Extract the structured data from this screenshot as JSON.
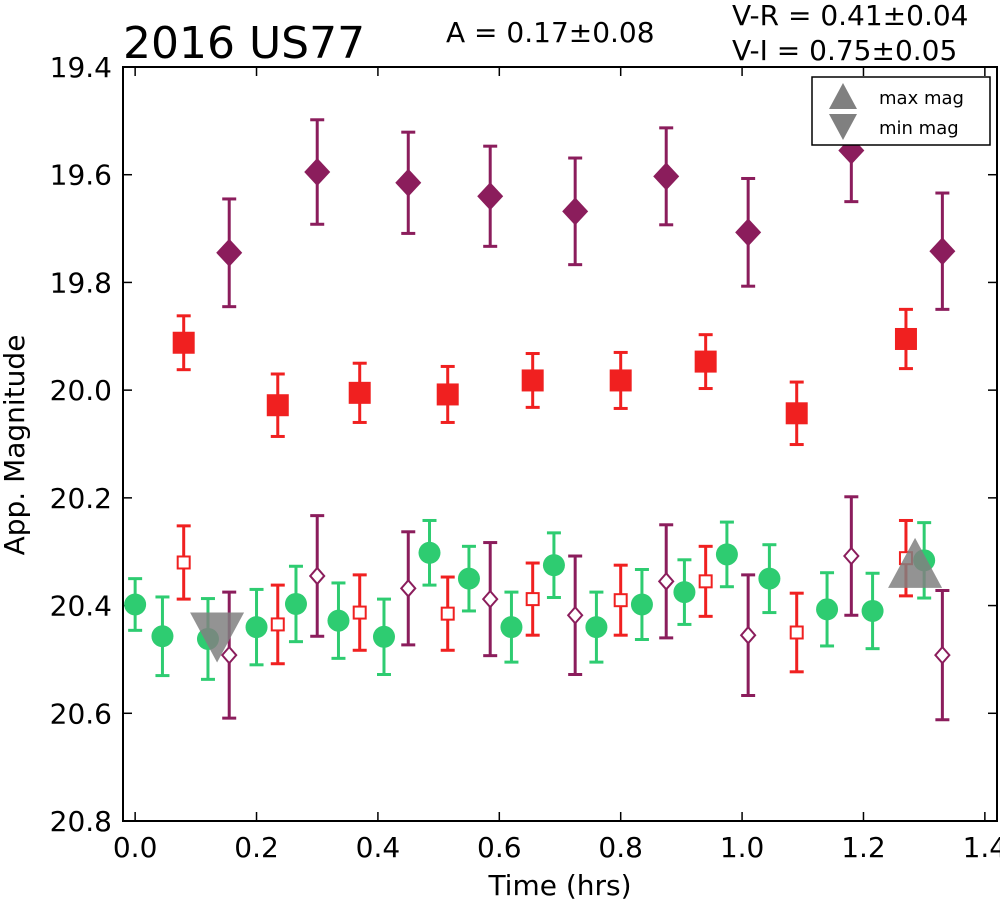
{
  "chart_data": {
    "type": "scatter",
    "title": "2016 US77",
    "annotations": {
      "amplitude": "A  = 0.17±0.08",
      "v_r": "V-R = 0.41±0.04",
      "v_i": "V-I  = 0.75±0.05"
    },
    "xlabel": "Time (hrs)",
    "ylabel": "App. Magnitude",
    "xlim": [
      -0.02,
      1.42
    ],
    "ylim": [
      20.8,
      19.4
    ],
    "y_inverted": true,
    "grid": false,
    "xticks": [
      "0.0",
      "0.2",
      "0.4",
      "0.6",
      "0.8",
      "1.0",
      "1.2",
      "1.4"
    ],
    "yticks": [
      "19.4",
      "19.6",
      "19.8",
      "20.0",
      "20.2",
      "20.4",
      "20.6",
      "20.8"
    ],
    "legend": {
      "placement": "top-right",
      "entries": [
        {
          "label": "max mag",
          "marker": "triangle-up",
          "color": "#808080"
        },
        {
          "label": "min mag",
          "marker": "triangle-down",
          "color": "#808080"
        }
      ]
    },
    "series": [
      {
        "marker": "diamond-filled",
        "color": "#8b1d5c",
        "points": [
          {
            "x": 0.155,
            "y": 19.745,
            "err": 0.1
          },
          {
            "x": 0.3,
            "y": 19.595,
            "err": 0.097
          },
          {
            "x": 0.45,
            "y": 19.615,
            "err": 0.094
          },
          {
            "x": 0.585,
            "y": 19.64,
            "err": 0.093
          },
          {
            "x": 0.725,
            "y": 19.668,
            "err": 0.099
          },
          {
            "x": 0.875,
            "y": 19.603,
            "err": 0.09
          },
          {
            "x": 1.01,
            "y": 19.707,
            "err": 0.1
          },
          {
            "x": 1.18,
            "y": 19.555,
            "err": 0.095
          },
          {
            "x": 1.33,
            "y": 19.742,
            "err": 0.108
          }
        ]
      },
      {
        "marker": "square-filled",
        "color": "#f02020",
        "points": [
          {
            "x": 0.08,
            "y": 19.912,
            "err": 0.05
          },
          {
            "x": 0.235,
            "y": 20.028,
            "err": 0.058
          },
          {
            "x": 0.37,
            "y": 20.005,
            "err": 0.055
          },
          {
            "x": 0.515,
            "y": 20.008,
            "err": 0.052
          },
          {
            "x": 0.655,
            "y": 19.982,
            "err": 0.05
          },
          {
            "x": 0.8,
            "y": 19.982,
            "err": 0.052
          },
          {
            "x": 0.94,
            "y": 19.947,
            "err": 0.05
          },
          {
            "x": 1.09,
            "y": 20.043,
            "err": 0.058
          },
          {
            "x": 1.27,
            "y": 19.905,
            "err": 0.055
          }
        ]
      },
      {
        "marker": "circle-filled",
        "color": "#2ecc71",
        "points": [
          {
            "x": 0.0,
            "y": 20.398,
            "err": 0.048
          },
          {
            "x": 0.045,
            "y": 20.457,
            "err": 0.073
          },
          {
            "x": 0.12,
            "y": 20.462,
            "err": 0.075
          },
          {
            "x": 0.2,
            "y": 20.44,
            "err": 0.07
          },
          {
            "x": 0.265,
            "y": 20.397,
            "err": 0.07
          },
          {
            "x": 0.335,
            "y": 20.428,
            "err": 0.07
          },
          {
            "x": 0.41,
            "y": 20.458,
            "err": 0.07
          },
          {
            "x": 0.485,
            "y": 20.302,
            "err": 0.06
          },
          {
            "x": 0.55,
            "y": 20.35,
            "err": 0.06
          },
          {
            "x": 0.62,
            "y": 20.44,
            "err": 0.065
          },
          {
            "x": 0.69,
            "y": 20.325,
            "err": 0.06
          },
          {
            "x": 0.76,
            "y": 20.44,
            "err": 0.065
          },
          {
            "x": 0.835,
            "y": 20.398,
            "err": 0.065
          },
          {
            "x": 0.905,
            "y": 20.375,
            "err": 0.06
          },
          {
            "x": 0.975,
            "y": 20.305,
            "err": 0.06
          },
          {
            "x": 1.045,
            "y": 20.35,
            "err": 0.063
          },
          {
            "x": 1.14,
            "y": 20.407,
            "err": 0.068
          },
          {
            "x": 1.215,
            "y": 20.41,
            "err": 0.07
          },
          {
            "x": 1.3,
            "y": 20.316,
            "err": 0.07
          }
        ]
      },
      {
        "marker": "square-open",
        "color": "#f02020",
        "points": [
          {
            "x": 0.08,
            "y": 20.32,
            "err": 0.068
          },
          {
            "x": 0.235,
            "y": 20.435,
            "err": 0.073
          },
          {
            "x": 0.37,
            "y": 20.413,
            "err": 0.07
          },
          {
            "x": 0.515,
            "y": 20.415,
            "err": 0.068
          },
          {
            "x": 0.655,
            "y": 20.388,
            "err": 0.067
          },
          {
            "x": 0.8,
            "y": 20.39,
            "err": 0.065
          },
          {
            "x": 0.94,
            "y": 20.355,
            "err": 0.065
          },
          {
            "x": 1.09,
            "y": 20.45,
            "err": 0.073
          },
          {
            "x": 1.27,
            "y": 20.312,
            "err": 0.07
          }
        ]
      },
      {
        "marker": "diamond-open",
        "color": "#8b1d5c",
        "points": [
          {
            "x": 0.155,
            "y": 20.492,
            "err": 0.117
          },
          {
            "x": 0.3,
            "y": 20.345,
            "err": 0.112
          },
          {
            "x": 0.45,
            "y": 20.368,
            "err": 0.105
          },
          {
            "x": 0.585,
            "y": 20.388,
            "err": 0.105
          },
          {
            "x": 0.725,
            "y": 20.418,
            "err": 0.11
          },
          {
            "x": 0.875,
            "y": 20.355,
            "err": 0.105
          },
          {
            "x": 1.01,
            "y": 20.455,
            "err": 0.112
          },
          {
            "x": 1.18,
            "y": 20.308,
            "err": 0.11
          },
          {
            "x": 1.33,
            "y": 20.492,
            "err": 0.12
          }
        ]
      }
    ],
    "extrema": [
      {
        "type": "min",
        "x": 0.135,
        "y": 20.45,
        "color": "#808080"
      },
      {
        "type": "max",
        "x": 1.285,
        "y": 20.33,
        "color": "#808080"
      }
    ]
  }
}
